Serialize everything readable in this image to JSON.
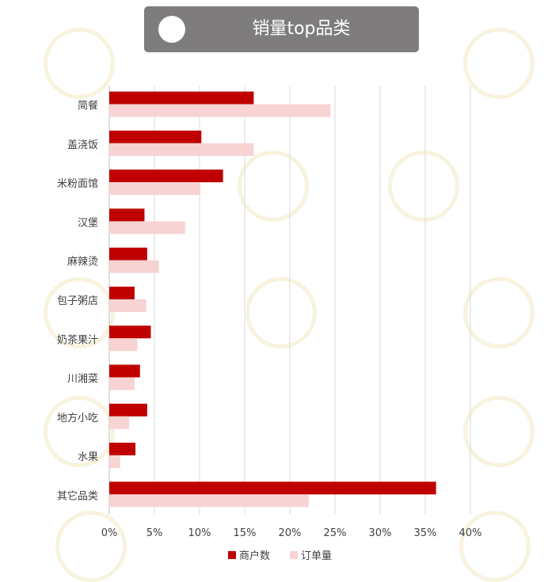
{
  "title": "销量top品类",
  "chart_data": {
    "type": "bar",
    "orientation": "horizontal",
    "categories": [
      "简餐",
      "盖浇饭",
      "米粉面馆",
      "汉堡",
      "麻辣烫",
      "包子粥店",
      "奶茶果汁",
      "川湘菜",
      "地方小吃",
      "水果",
      "其它品类"
    ],
    "series": [
      {
        "name": "商户数",
        "color": "#c00000",
        "values": [
          16.0,
          10.2,
          12.6,
          3.9,
          4.2,
          2.8,
          4.6,
          3.4,
          4.2,
          2.9,
          36.2
        ]
      },
      {
        "name": "订单量",
        "color": "#f7d3d3",
        "values": [
          24.5,
          16.0,
          10.1,
          8.4,
          5.5,
          4.1,
          3.1,
          2.8,
          2.2,
          1.2,
          22.1
        ]
      }
    ],
    "xlim": [
      0,
      40
    ],
    "xticks": [
      0,
      5,
      10,
      15,
      20,
      25,
      30,
      35,
      40
    ],
    "xtick_suffix": "%",
    "grid": "vertical",
    "legend": "bottom"
  }
}
